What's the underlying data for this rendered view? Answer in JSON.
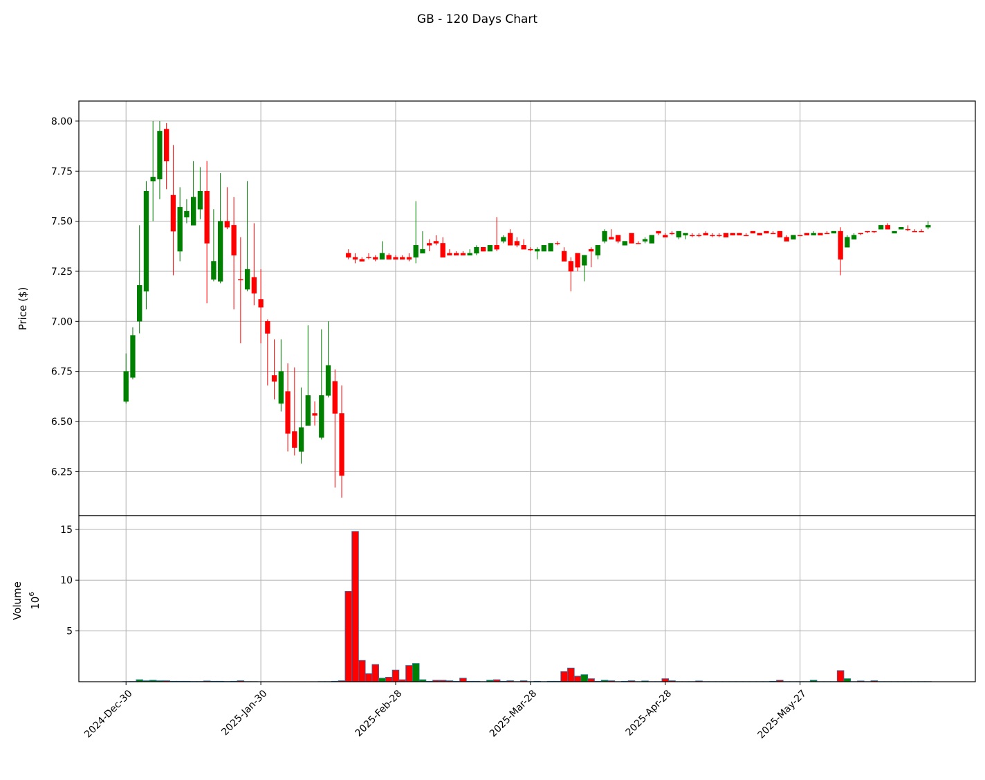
{
  "chart_data": {
    "type": "candlestick",
    "title": "GB - 120 Days Chart",
    "ylabel": "Price ($)",
    "volume_label": "Volume",
    "volume_scale": {
      "base": "10",
      "exponent": "6"
    },
    "categories": [
      "2024-Dec-30",
      null,
      null,
      null,
      null,
      null,
      null,
      null,
      null,
      null,
      null,
      null,
      null,
      null,
      null,
      null,
      null,
      null,
      null,
      null,
      "2025-Jan-30",
      null,
      null,
      null,
      null,
      null,
      null,
      null,
      null,
      null,
      null,
      null,
      null,
      null,
      null,
      null,
      null,
      null,
      null,
      null,
      "2025-Feb-28",
      null,
      null,
      null,
      null,
      null,
      null,
      null,
      null,
      null,
      null,
      null,
      null,
      null,
      null,
      null,
      null,
      null,
      null,
      null,
      "2025-Mar-28",
      null,
      null,
      null,
      null,
      null,
      null,
      null,
      null,
      null,
      null,
      null,
      null,
      null,
      null,
      null,
      null,
      null,
      null,
      null,
      "2025-Apr-28",
      null,
      null,
      null,
      null,
      null,
      null,
      null,
      null,
      null,
      null,
      null,
      null,
      null,
      null,
      null,
      null,
      null,
      null,
      null,
      "2025-May-27",
      null,
      null,
      null,
      null,
      null,
      null,
      null,
      null,
      null,
      null,
      null,
      null,
      null,
      null,
      null,
      null,
      null,
      null,
      null
    ],
    "open": [
      6.6,
      6.72,
      7.0,
      7.15,
      7.7,
      7.71,
      7.96,
      7.63,
      7.35,
      7.52,
      7.48,
      7.56,
      7.65,
      7.21,
      7.2,
      7.5,
      7.48,
      7.21,
      7.16,
      7.22,
      7.11,
      7.0,
      6.73,
      6.59,
      6.65,
      6.45,
      6.35,
      6.48,
      6.54,
      6.42,
      6.63,
      6.7,
      6.54,
      7.34,
      7.32,
      7.31,
      7.32,
      7.32,
      7.31,
      7.33,
      7.32,
      7.32,
      7.32,
      7.32,
      7.34,
      7.39,
      7.4,
      7.39,
      7.34,
      7.34,
      7.34,
      7.33,
      7.34,
      7.37,
      7.35,
      7.38,
      7.4,
      7.44,
      7.4,
      7.38,
      7.36,
      7.35,
      7.35,
      7.35,
      7.39,
      7.35,
      7.3,
      7.34,
      7.28,
      7.36,
      7.33,
      7.4,
      7.42,
      7.43,
      7.38,
      7.44,
      7.39,
      7.4,
      7.39,
      7.45,
      7.43,
      7.44,
      7.42,
      7.43,
      7.43,
      7.43,
      7.44,
      7.43,
      7.43,
      7.44,
      7.44,
      7.44,
      7.43,
      7.45,
      7.44,
      7.45,
      7.44,
      7.45,
      7.42,
      7.41,
      7.43,
      7.44,
      7.43,
      7.44,
      7.44,
      7.44,
      7.45,
      7.37,
      7.41,
      7.44,
      7.45,
      7.45,
      7.46,
      7.48,
      7.44,
      7.46,
      7.46,
      7.45,
      7.45,
      7.47
    ],
    "high": [
      6.84,
      6.97,
      7.48,
      7.7,
      8.0,
      8.0,
      7.99,
      7.88,
      7.67,
      7.61,
      7.8,
      7.77,
      7.8,
      7.56,
      7.74,
      7.67,
      7.62,
      7.42,
      7.7,
      7.49,
      7.26,
      7.01,
      6.91,
      6.91,
      6.79,
      6.77,
      6.67,
      6.98,
      6.6,
      6.96,
      7.0,
      6.76,
      6.68,
      7.36,
      7.34,
      7.32,
      7.34,
      7.33,
      7.4,
      7.34,
      7.33,
      7.33,
      7.34,
      7.6,
      7.45,
      7.41,
      7.43,
      7.42,
      7.36,
      7.35,
      7.35,
      7.36,
      7.38,
      7.37,
      7.38,
      7.52,
      7.43,
      7.46,
      7.42,
      7.41,
      7.37,
      7.37,
      7.38,
      7.39,
      7.4,
      7.37,
      7.32,
      7.34,
      7.33,
      7.37,
      7.38,
      7.46,
      7.46,
      7.43,
      7.4,
      7.44,
      7.4,
      7.42,
      7.43,
      7.45,
      7.44,
      7.45,
      7.45,
      7.44,
      7.44,
      7.44,
      7.45,
      7.44,
      7.44,
      7.44,
      7.44,
      7.44,
      7.44,
      7.45,
      7.44,
      7.45,
      7.45,
      7.45,
      7.43,
      7.43,
      7.43,
      7.44,
      7.45,
      7.44,
      7.45,
      7.45,
      7.47,
      7.43,
      7.44,
      7.44,
      7.45,
      7.45,
      7.48,
      7.49,
      7.45,
      7.47,
      7.48,
      7.46,
      7.46,
      7.5
    ],
    "low": [
      6.59,
      6.71,
      6.94,
      7.06,
      7.5,
      7.61,
      7.66,
      7.23,
      7.3,
      7.49,
      7.48,
      7.51,
      7.09,
      7.2,
      7.19,
      7.46,
      7.06,
      6.89,
      7.15,
      7.08,
      6.89,
      6.68,
      6.61,
      6.55,
      6.35,
      6.33,
      6.29,
      6.48,
      6.48,
      6.41,
      6.62,
      6.17,
      6.12,
      7.31,
      7.29,
      7.3,
      7.31,
      7.3,
      7.31,
      7.31,
      7.31,
      7.31,
      7.3,
      7.29,
      7.34,
      7.35,
      7.38,
      7.32,
      7.33,
      7.33,
      7.33,
      7.33,
      7.33,
      7.35,
      7.35,
      7.35,
      7.39,
      7.38,
      7.37,
      7.36,
      7.35,
      7.31,
      7.35,
      7.35,
      7.38,
      7.3,
      7.15,
      7.25,
      7.2,
      7.27,
      7.31,
      7.39,
      7.41,
      7.39,
      7.38,
      7.39,
      7.39,
      7.39,
      7.39,
      7.43,
      7.42,
      7.43,
      7.41,
      7.41,
      7.42,
      7.42,
      7.43,
      7.42,
      7.42,
      7.42,
      7.43,
      7.43,
      7.43,
      7.44,
      7.43,
      7.44,
      7.44,
      7.42,
      7.4,
      7.41,
      7.43,
      7.43,
      7.43,
      7.43,
      7.44,
      7.44,
      7.23,
      7.37,
      7.41,
      7.43,
      7.44,
      7.44,
      7.46,
      7.46,
      7.44,
      7.46,
      7.45,
      7.45,
      7.45,
      7.46
    ],
    "close": [
      6.75,
      6.93,
      7.18,
      7.65,
      7.72,
      7.95,
      7.8,
      7.45,
      7.57,
      7.55,
      7.62,
      7.65,
      7.39,
      7.3,
      7.5,
      7.47,
      7.33,
      7.21,
      7.26,
      7.14,
      7.07,
      6.94,
      6.7,
      6.75,
      6.44,
      6.37,
      6.47,
      6.63,
      6.53,
      6.63,
      6.78,
      6.54,
      6.23,
      7.32,
      7.31,
      7.3,
      7.32,
      7.31,
      7.34,
      7.31,
      7.31,
      7.31,
      7.31,
      7.38,
      7.36,
      7.38,
      7.39,
      7.32,
      7.33,
      7.33,
      7.33,
      7.34,
      7.37,
      7.35,
      7.38,
      7.36,
      7.42,
      7.38,
      7.38,
      7.36,
      7.36,
      7.36,
      7.38,
      7.39,
      7.39,
      7.3,
      7.25,
      7.27,
      7.33,
      7.35,
      7.38,
      7.45,
      7.41,
      7.4,
      7.4,
      7.39,
      7.39,
      7.41,
      7.43,
      7.44,
      7.42,
      7.44,
      7.45,
      7.44,
      7.43,
      7.43,
      7.43,
      7.43,
      7.43,
      7.42,
      7.43,
      7.43,
      7.43,
      7.44,
      7.43,
      7.44,
      7.44,
      7.42,
      7.4,
      7.43,
      7.43,
      7.43,
      7.44,
      7.43,
      7.44,
      7.45,
      7.31,
      7.42,
      7.43,
      7.44,
      7.45,
      7.45,
      7.48,
      7.46,
      7.45,
      7.47,
      7.46,
      7.45,
      7.45,
      7.48
    ],
    "volume": [
      0.02,
      0.03,
      0.2,
      0.1,
      0.15,
      0.1,
      0.1,
      0.05,
      0.05,
      0.05,
      0.03,
      0.03,
      0.08,
      0.05,
      0.05,
      0.03,
      0.05,
      0.1,
      0.02,
      0.02,
      0.01,
      0.01,
      0.01,
      0.01,
      0.01,
      0.01,
      0.01,
      0.01,
      0.01,
      0.02,
      0.02,
      0.05,
      0.1,
      8.9,
      14.8,
      2.1,
      0.8,
      1.7,
      0.35,
      0.45,
      1.15,
      0.2,
      1.6,
      1.8,
      0.2,
      0.05,
      0.15,
      0.15,
      0.1,
      0.05,
      0.35,
      0.05,
      0.05,
      0.02,
      0.15,
      0.2,
      0.05,
      0.1,
      0.02,
      0.1,
      0.02,
      0.05,
      0.02,
      0.05,
      0.05,
      1.0,
      1.35,
      0.55,
      0.7,
      0.3,
      0.05,
      0.15,
      0.1,
      0.02,
      0.05,
      0.1,
      0.02,
      0.08,
      0.02,
      0.02,
      0.3,
      0.1,
      0.02,
      0.02,
      0.02,
      0.08,
      0.02,
      0.02,
      0.02,
      0.02,
      0.02,
      0.02,
      0.02,
      0.02,
      0.02,
      0.02,
      0.05,
      0.15,
      0.02,
      0.02,
      0.02,
      0.02,
      0.15,
      0.02,
      0.02,
      0.02,
      1.1,
      0.3,
      0.02,
      0.08,
      0.02,
      0.1,
      0.02,
      0.02,
      0.02,
      0.02,
      0.02,
      0.02,
      0.02,
      0.02
    ],
    "up_color": "#008000",
    "down_color": "#ff0000",
    "volume_edge_color": "#1f77b4",
    "ylim": [
      6.03,
      8.1
    ],
    "yticks": [
      {
        "value": 6.25,
        "label": "6.25"
      },
      {
        "value": 6.5,
        "label": "6.50"
      },
      {
        "value": 6.75,
        "label": "6.75"
      },
      {
        "value": 7,
        "label": "7.00"
      },
      {
        "value": 7.25,
        "label": "7.25"
      },
      {
        "value": 7.5,
        "label": "7.50"
      },
      {
        "value": 7.75,
        "label": "7.75"
      },
      {
        "value": 8,
        "label": "8.00"
      }
    ],
    "volume_ylim": [
      0,
      16.35
    ],
    "volume_yticks": [
      5,
      10,
      15
    ],
    "grid": true
  }
}
